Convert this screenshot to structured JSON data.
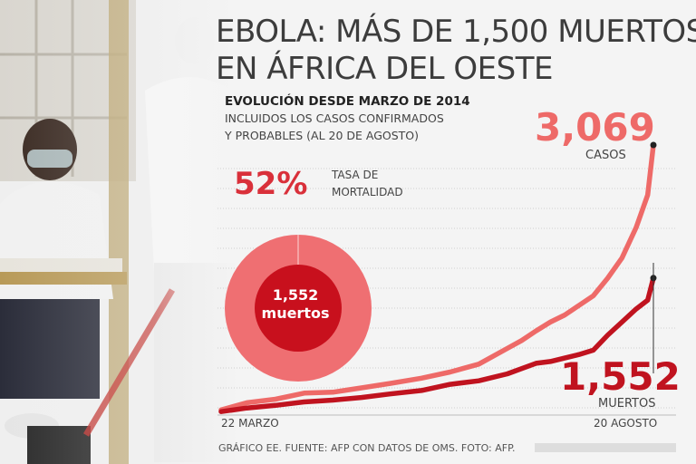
{
  "title_line1": "EBOLA: MÁS DE 1,500 MUERTOS",
  "title_line2": "EN ÁFRICA DEL OESTE",
  "subtitle": "EVOLUCIÓN DESDE MARZO DE 2014",
  "subtitle_line2": "INCLUIDOS LOS CASOS CONFIRMADOS",
  "subtitle_line3": "Y PROBABLES (AL 20 DE AGOSTO)",
  "mortality": {
    "percent_label": "52%",
    "label_line1": "TASA DE",
    "label_line2": "MORTALIDAD",
    "circle_value": "1,552",
    "circle_label": "muertos",
    "rate": 0.52
  },
  "cases": {
    "value_label": "3,069",
    "label": "CASOS"
  },
  "deaths": {
    "value_label": "1,552",
    "label": "MUERTOS"
  },
  "x_start_label": "22 MARZO",
  "x_end_label": "20 AGOSTO",
  "footer": "GRÁFICO EE. FUENTE: AFP CON DATOS DE OMS. FOTO: AFP.",
  "colors": {
    "cases": "#ee6a68",
    "deaths": "#c0131f",
    "circle_outer": "#ef6f72",
    "circle_inner": "#c8101d",
    "title": "#3c3c3c"
  },
  "chart_data": {
    "type": "line",
    "x": [
      "2014-03-22",
      "2014-03-31",
      "2014-04-10",
      "2014-04-20",
      "2014-04-30",
      "2014-05-10",
      "2014-05-20",
      "2014-05-31",
      "2014-06-10",
      "2014-06-20",
      "2014-06-30",
      "2014-07-05",
      "2014-07-10",
      "2014-07-15",
      "2014-07-20",
      "2014-07-25",
      "2014-07-30",
      "2014-08-04",
      "2014-08-09",
      "2014-08-14",
      "2014-08-18",
      "2014-08-20"
    ],
    "series": [
      {
        "name": "CASOS",
        "values": [
          49,
          130,
          170,
          240,
          250,
          300,
          350,
          410,
          480,
          570,
          750,
          840,
          950,
          1050,
          1130,
          1240,
          1350,
          1550,
          1780,
          2130,
          2500,
          3069
        ]
      },
      {
        "name": "MUERTOS",
        "values": [
          29,
          70,
          100,
          140,
          160,
          190,
          230,
          270,
          340,
          380,
          460,
          520,
          580,
          600,
          640,
          680,
          730,
          900,
          1050,
          1200,
          1300,
          1552
        ]
      }
    ],
    "xlabel": "",
    "ylabel": "",
    "x_tick_labels": [
      "22 MARZO",
      "20 AGOSTO"
    ],
    "ylim": [
      0,
      3100
    ],
    "grid": true,
    "legend": "none"
  }
}
